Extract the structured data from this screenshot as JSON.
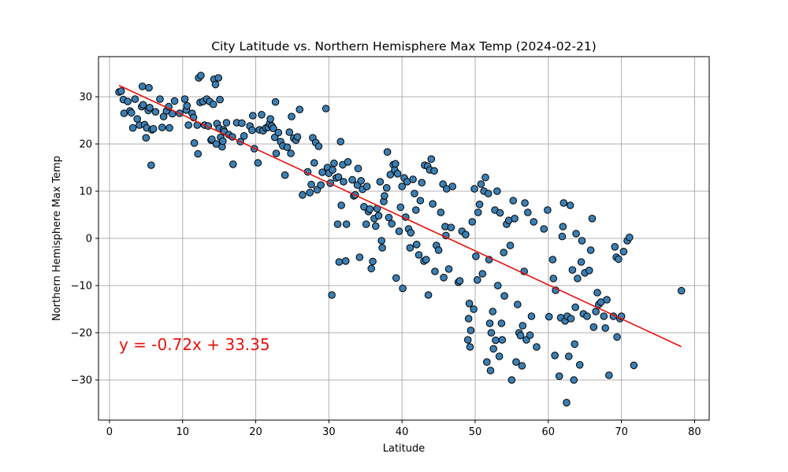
{
  "chart_data": {
    "type": "scatter",
    "title": "City Latitude vs. Northern Hemisphere Max Temp (2024-02-21)",
    "xlabel": "Latitude",
    "ylabel": "Northern Hemisphere Max Temp",
    "xlim": [
      -1.5,
      82.0
    ],
    "ylim": [
      -38.5,
      38.5
    ],
    "xticks": [
      0,
      10,
      20,
      30,
      40,
      50,
      60,
      70,
      80
    ],
    "yticks": [
      -30,
      -20,
      -10,
      0,
      10,
      20,
      30
    ],
    "grid": true,
    "colors": {
      "marker_fill": "#3b7fb3",
      "marker_edge": "#000000",
      "regression_line": "#e8110d",
      "grid": "#b0b0b0"
    },
    "regression": {
      "slope": -0.72,
      "intercept": 33.35,
      "x_range": [
        1.3,
        78.2
      ],
      "equation_label": "y = -0.72x + 33.35",
      "label_anchor": [
        1.3,
        -22.5
      ]
    },
    "points": [
      [
        1.3,
        31.0
      ],
      [
        1.6,
        31.2
      ],
      [
        1.9,
        29.4
      ],
      [
        2.0,
        26.5
      ],
      [
        2.5,
        29.0
      ],
      [
        2.8,
        27.0
      ],
      [
        3.0,
        26.6
      ],
      [
        3.2,
        23.4
      ],
      [
        3.5,
        29.5
      ],
      [
        3.8,
        25.3
      ],
      [
        4.1,
        24.0
      ],
      [
        4.4,
        27.9
      ],
      [
        4.5,
        32.2
      ],
      [
        4.6,
        28.3
      ],
      [
        4.8,
        24.1
      ],
      [
        5.0,
        21.3
      ],
      [
        5.1,
        23.4
      ],
      [
        5.3,
        27.1
      ],
      [
        5.4,
        31.9
      ],
      [
        5.5,
        27.7
      ],
      [
        5.7,
        15.5
      ],
      [
        5.8,
        23.0
      ],
      [
        6.0,
        23.2
      ],
      [
        6.3,
        26.8
      ],
      [
        6.9,
        29.5
      ],
      [
        7.2,
        23.5
      ],
      [
        7.4,
        25.8
      ],
      [
        7.8,
        27.0
      ],
      [
        8.1,
        27.9
      ],
      [
        8.2,
        23.4
      ],
      [
        8.6,
        26.4
      ],
      [
        8.9,
        29.1
      ],
      [
        9.6,
        26.5
      ],
      [
        10.3,
        29.5
      ],
      [
        10.5,
        27.2
      ],
      [
        10.6,
        28.1
      ],
      [
        10.8,
        24.0
      ],
      [
        11.3,
        26.5
      ],
      [
        11.5,
        25.6
      ],
      [
        11.6,
        20.2
      ],
      [
        12.0,
        24.0
      ],
      [
        12.1,
        17.9
      ],
      [
        12.2,
        34.0
      ],
      [
        12.4,
        28.8
      ],
      [
        12.5,
        34.5
      ],
      [
        12.8,
        29.0
      ],
      [
        13.0,
        24.0
      ],
      [
        13.3,
        29.5
      ],
      [
        13.5,
        23.8
      ],
      [
        13.7,
        29.0
      ],
      [
        13.9,
        20.8
      ],
      [
        14.0,
        21.0
      ],
      [
        14.2,
        28.4
      ],
      [
        14.3,
        33.7
      ],
      [
        14.5,
        32.6
      ],
      [
        14.6,
        20.0
      ],
      [
        14.7,
        24.3
      ],
      [
        14.9,
        34.0
      ],
      [
        15.0,
        23.3
      ],
      [
        15.1,
        29.4
      ],
      [
        15.2,
        21.4
      ],
      [
        15.4,
        19.4
      ],
      [
        15.5,
        20.6
      ],
      [
        15.6,
        23.0
      ],
      [
        15.7,
        22.6
      ],
      [
        16.0,
        24.5
      ],
      [
        16.3,
        22.0
      ],
      [
        16.8,
        21.5
      ],
      [
        16.9,
        15.7
      ],
      [
        17.4,
        24.5
      ],
      [
        17.9,
        20.5
      ],
      [
        18.1,
        24.4
      ],
      [
        18.4,
        21.7
      ],
      [
        19.2,
        23.8
      ],
      [
        19.5,
        22.9
      ],
      [
        19.6,
        26.0
      ],
      [
        19.8,
        19.0
      ],
      [
        20.3,
        16.0
      ],
      [
        20.5,
        23.0
      ],
      [
        20.8,
        26.2
      ],
      [
        21.0,
        22.8
      ],
      [
        21.4,
        23.4
      ],
      [
        21.7,
        23.5
      ],
      [
        21.9,
        24.3
      ],
      [
        22.0,
        25.3
      ],
      [
        22.2,
        23.8
      ],
      [
        22.4,
        23.3
      ],
      [
        22.6,
        21.4
      ],
      [
        22.7,
        28.9
      ],
      [
        22.8,
        18.0
      ],
      [
        23.1,
        22.4
      ],
      [
        23.4,
        20.5
      ],
      [
        23.7,
        19.6
      ],
      [
        24.0,
        13.4
      ],
      [
        24.3,
        19.3
      ],
      [
        24.6,
        22.5
      ],
      [
        24.8,
        18.0
      ],
      [
        24.9,
        25.8
      ],
      [
        25.2,
        21.2
      ],
      [
        25.5,
        20.8
      ],
      [
        25.7,
        21.5
      ],
      [
        26.0,
        27.3
      ],
      [
        26.4,
        9.2
      ],
      [
        27.1,
        14.1
      ],
      [
        27.4,
        9.7
      ],
      [
        27.6,
        11.4
      ],
      [
        27.8,
        21.3
      ],
      [
        28.0,
        16.0
      ],
      [
        28.2,
        20.3
      ],
      [
        28.4,
        10.3
      ],
      [
        28.6,
        19.5
      ],
      [
        28.9,
        11.3
      ],
      [
        29.1,
        14.0
      ],
      [
        29.6,
        27.5
      ],
      [
        29.8,
        15.0
      ],
      [
        30.0,
        13.8
      ],
      [
        30.2,
        11.7
      ],
      [
        30.4,
        -12.0
      ],
      [
        30.5,
        14.5
      ],
      [
        30.7,
        15.9
      ],
      [
        31.0,
        12.8
      ],
      [
        31.2,
        3.0
      ],
      [
        31.3,
        13.0
      ],
      [
        31.4,
        -5.0
      ],
      [
        31.6,
        20.5
      ],
      [
        31.7,
        7.0
      ],
      [
        31.9,
        15.6
      ],
      [
        32.0,
        12.0
      ],
      [
        32.3,
        -4.8
      ],
      [
        32.4,
        3.0
      ],
      [
        32.6,
        16.2
      ],
      [
        33.2,
        12.4
      ],
      [
        33.4,
        9.0
      ],
      [
        33.6,
        9.2
      ],
      [
        33.9,
        11.3
      ],
      [
        34.0,
        14.8
      ],
      [
        34.2,
        -4.0
      ],
      [
        34.4,
        12.2
      ],
      [
        34.6,
        10.4
      ],
      [
        34.8,
        6.7
      ],
      [
        35.1,
        3.0
      ],
      [
        35.2,
        11.0
      ],
      [
        35.4,
        5.7
      ],
      [
        35.6,
        6.2
      ],
      [
        35.8,
        -6.4
      ],
      [
        36.0,
        -4.9
      ],
      [
        36.2,
        4.2
      ],
      [
        36.4,
        2.6
      ],
      [
        36.6,
        6.3
      ],
      [
        36.8,
        4.8
      ],
      [
        37.0,
        12.0
      ],
      [
        37.2,
        -0.5
      ],
      [
        37.3,
        -2.0
      ],
      [
        37.5,
        7.8
      ],
      [
        37.6,
        9.0
      ],
      [
        37.9,
        10.7
      ],
      [
        38.0,
        18.3
      ],
      [
        38.2,
        4.4
      ],
      [
        38.4,
        13.5
      ],
      [
        38.6,
        3.1
      ],
      [
        38.8,
        15.6
      ],
      [
        39.0,
        14.5
      ],
      [
        39.1,
        15.8
      ],
      [
        39.2,
        -8.4
      ],
      [
        39.4,
        13.7
      ],
      [
        39.6,
        1.5
      ],
      [
        39.8,
        6.6
      ],
      [
        40.0,
        11.0
      ],
      [
        40.1,
        -10.6
      ],
      [
        40.3,
        12.8
      ],
      [
        40.5,
        4.5
      ],
      [
        40.7,
        12.0
      ],
      [
        40.9,
        2.0
      ],
      [
        41.1,
        -2.0
      ],
      [
        41.2,
        1.2
      ],
      [
        41.5,
        12.5
      ],
      [
        41.7,
        9.5
      ],
      [
        41.9,
        6.0
      ],
      [
        42.0,
        -1.3
      ],
      [
        42.3,
        -3.5
      ],
      [
        42.5,
        8.0
      ],
      [
        42.7,
        11.8
      ],
      [
        43.0,
        -4.8
      ],
      [
        43.1,
        15.5
      ],
      [
        43.3,
        -4.5
      ],
      [
        43.5,
        15.3
      ],
      [
        43.6,
        -12.0
      ],
      [
        43.8,
        14.5
      ],
      [
        44.0,
        16.8
      ],
      [
        44.2,
        7.3
      ],
      [
        44.4,
        14.3
      ],
      [
        44.5,
        -7.0
      ],
      [
        44.7,
        -1.5
      ],
      [
        45.0,
        -2.5
      ],
      [
        45.3,
        5.5
      ],
      [
        45.6,
        11.5
      ],
      [
        45.7,
        -8.3
      ],
      [
        45.9,
        2.5
      ],
      [
        46.0,
        0.6
      ],
      [
        46.1,
        10.5
      ],
      [
        46.4,
        -6.5
      ],
      [
        46.7,
        2.3
      ],
      [
        46.9,
        11.0
      ],
      [
        47.7,
        -9.3
      ],
      [
        47.9,
        -9.0
      ],
      [
        48.2,
        1.5
      ],
      [
        48.7,
        0.8
      ],
      [
        49.0,
        -21.5
      ],
      [
        49.1,
        -17.0
      ],
      [
        49.2,
        -13.8
      ],
      [
        49.3,
        -23.0
      ],
      [
        49.4,
        -19.5
      ],
      [
        49.6,
        3.5
      ],
      [
        49.8,
        -15.0
      ],
      [
        49.9,
        10.5
      ],
      [
        50.1,
        -3.8
      ],
      [
        50.3,
        -8.8
      ],
      [
        50.4,
        5.5
      ],
      [
        50.6,
        7.2
      ],
      [
        50.8,
        11.5
      ],
      [
        51.0,
        -7.5
      ],
      [
        51.2,
        10.0
      ],
      [
        51.4,
        12.9
      ],
      [
        51.6,
        -26.2
      ],
      [
        51.8,
        9.5
      ],
      [
        51.9,
        -4.5
      ],
      [
        52.0,
        -18.0
      ],
      [
        52.1,
        -28.0
      ],
      [
        52.2,
        -20.0
      ],
      [
        52.4,
        -15.5
      ],
      [
        52.5,
        -23.4
      ],
      [
        52.7,
        6.0
      ],
      [
        52.8,
        -21.6
      ],
      [
        53.0,
        10.0
      ],
      [
        53.1,
        -10.0
      ],
      [
        53.3,
        -25.0
      ],
      [
        53.4,
        5.4
      ],
      [
        53.6,
        -18.0
      ],
      [
        53.7,
        -21.5
      ],
      [
        53.9,
        -3.0
      ],
      [
        54.0,
        -12.2
      ],
      [
        54.3,
        3.0
      ],
      [
        54.6,
        3.8
      ],
      [
        54.8,
        -1.5
      ],
      [
        55.0,
        -30.0
      ],
      [
        55.2,
        8.0
      ],
      [
        55.4,
        4.2
      ],
      [
        55.6,
        -26.2
      ],
      [
        55.8,
        -14.0
      ],
      [
        56.0,
        -20.0
      ],
      [
        56.2,
        -20.6
      ],
      [
        56.4,
        -27.0
      ],
      [
        56.5,
        -18.5
      ],
      [
        56.7,
        -7.0
      ],
      [
        56.8,
        7.5
      ],
      [
        57.0,
        -21.5
      ],
      [
        57.2,
        5.5
      ],
      [
        57.5,
        -20.5
      ],
      [
        57.7,
        -16.5
      ],
      [
        58.0,
        3.5
      ],
      [
        58.4,
        -23.0
      ],
      [
        59.4,
        2.0
      ],
      [
        59.9,
        6.0
      ],
      [
        60.1,
        -16.6
      ],
      [
        60.6,
        -4.5
      ],
      [
        60.7,
        -8.5
      ],
      [
        60.9,
        -24.8
      ],
      [
        61.0,
        -11.0
      ],
      [
        61.5,
        -29.2
      ],
      [
        61.7,
        -16.8
      ],
      [
        61.9,
        0.4
      ],
      [
        62.0,
        2.5
      ],
      [
        62.1,
        7.5
      ],
      [
        62.3,
        -17.5
      ],
      [
        62.5,
        -34.8
      ],
      [
        62.6,
        -16.5
      ],
      [
        62.8,
        -25.0
      ],
      [
        63.0,
        7.0
      ],
      [
        63.1,
        -17.0
      ],
      [
        63.3,
        -6.7
      ],
      [
        63.5,
        -30.0
      ],
      [
        63.6,
        -22.4
      ],
      [
        63.7,
        -14.6
      ],
      [
        63.8,
        1.0
      ],
      [
        64.0,
        -8.5
      ],
      [
        64.3,
        -26.8
      ],
      [
        64.5,
        -5.0
      ],
      [
        64.6,
        -0.5
      ],
      [
        64.8,
        -16.0
      ],
      [
        65.0,
        -7.3
      ],
      [
        65.3,
        -16.5
      ],
      [
        65.6,
        -6.8
      ],
      [
        65.8,
        -2.5
      ],
      [
        66.0,
        4.2
      ],
      [
        66.2,
        -18.8
      ],
      [
        66.5,
        -15.5
      ],
      [
        66.7,
        -11.5
      ],
      [
        66.9,
        -14.0
      ],
      [
        67.2,
        -13.5
      ],
      [
        67.6,
        -16.5
      ],
      [
        67.8,
        -19.0
      ],
      [
        68.0,
        -13.0
      ],
      [
        68.3,
        -29.0
      ],
      [
        68.9,
        -16.5
      ],
      [
        69.1,
        -1.8
      ],
      [
        69.3,
        -4.0
      ],
      [
        69.4,
        -20.9
      ],
      [
        69.6,
        -4.4
      ],
      [
        69.8,
        -17.0
      ],
      [
        70.0,
        -16.5
      ],
      [
        70.3,
        -2.8
      ],
      [
        70.8,
        -0.5
      ],
      [
        71.1,
        0.2
      ],
      [
        71.7,
        -26.9
      ],
      [
        78.2,
        -11.1
      ]
    ]
  }
}
